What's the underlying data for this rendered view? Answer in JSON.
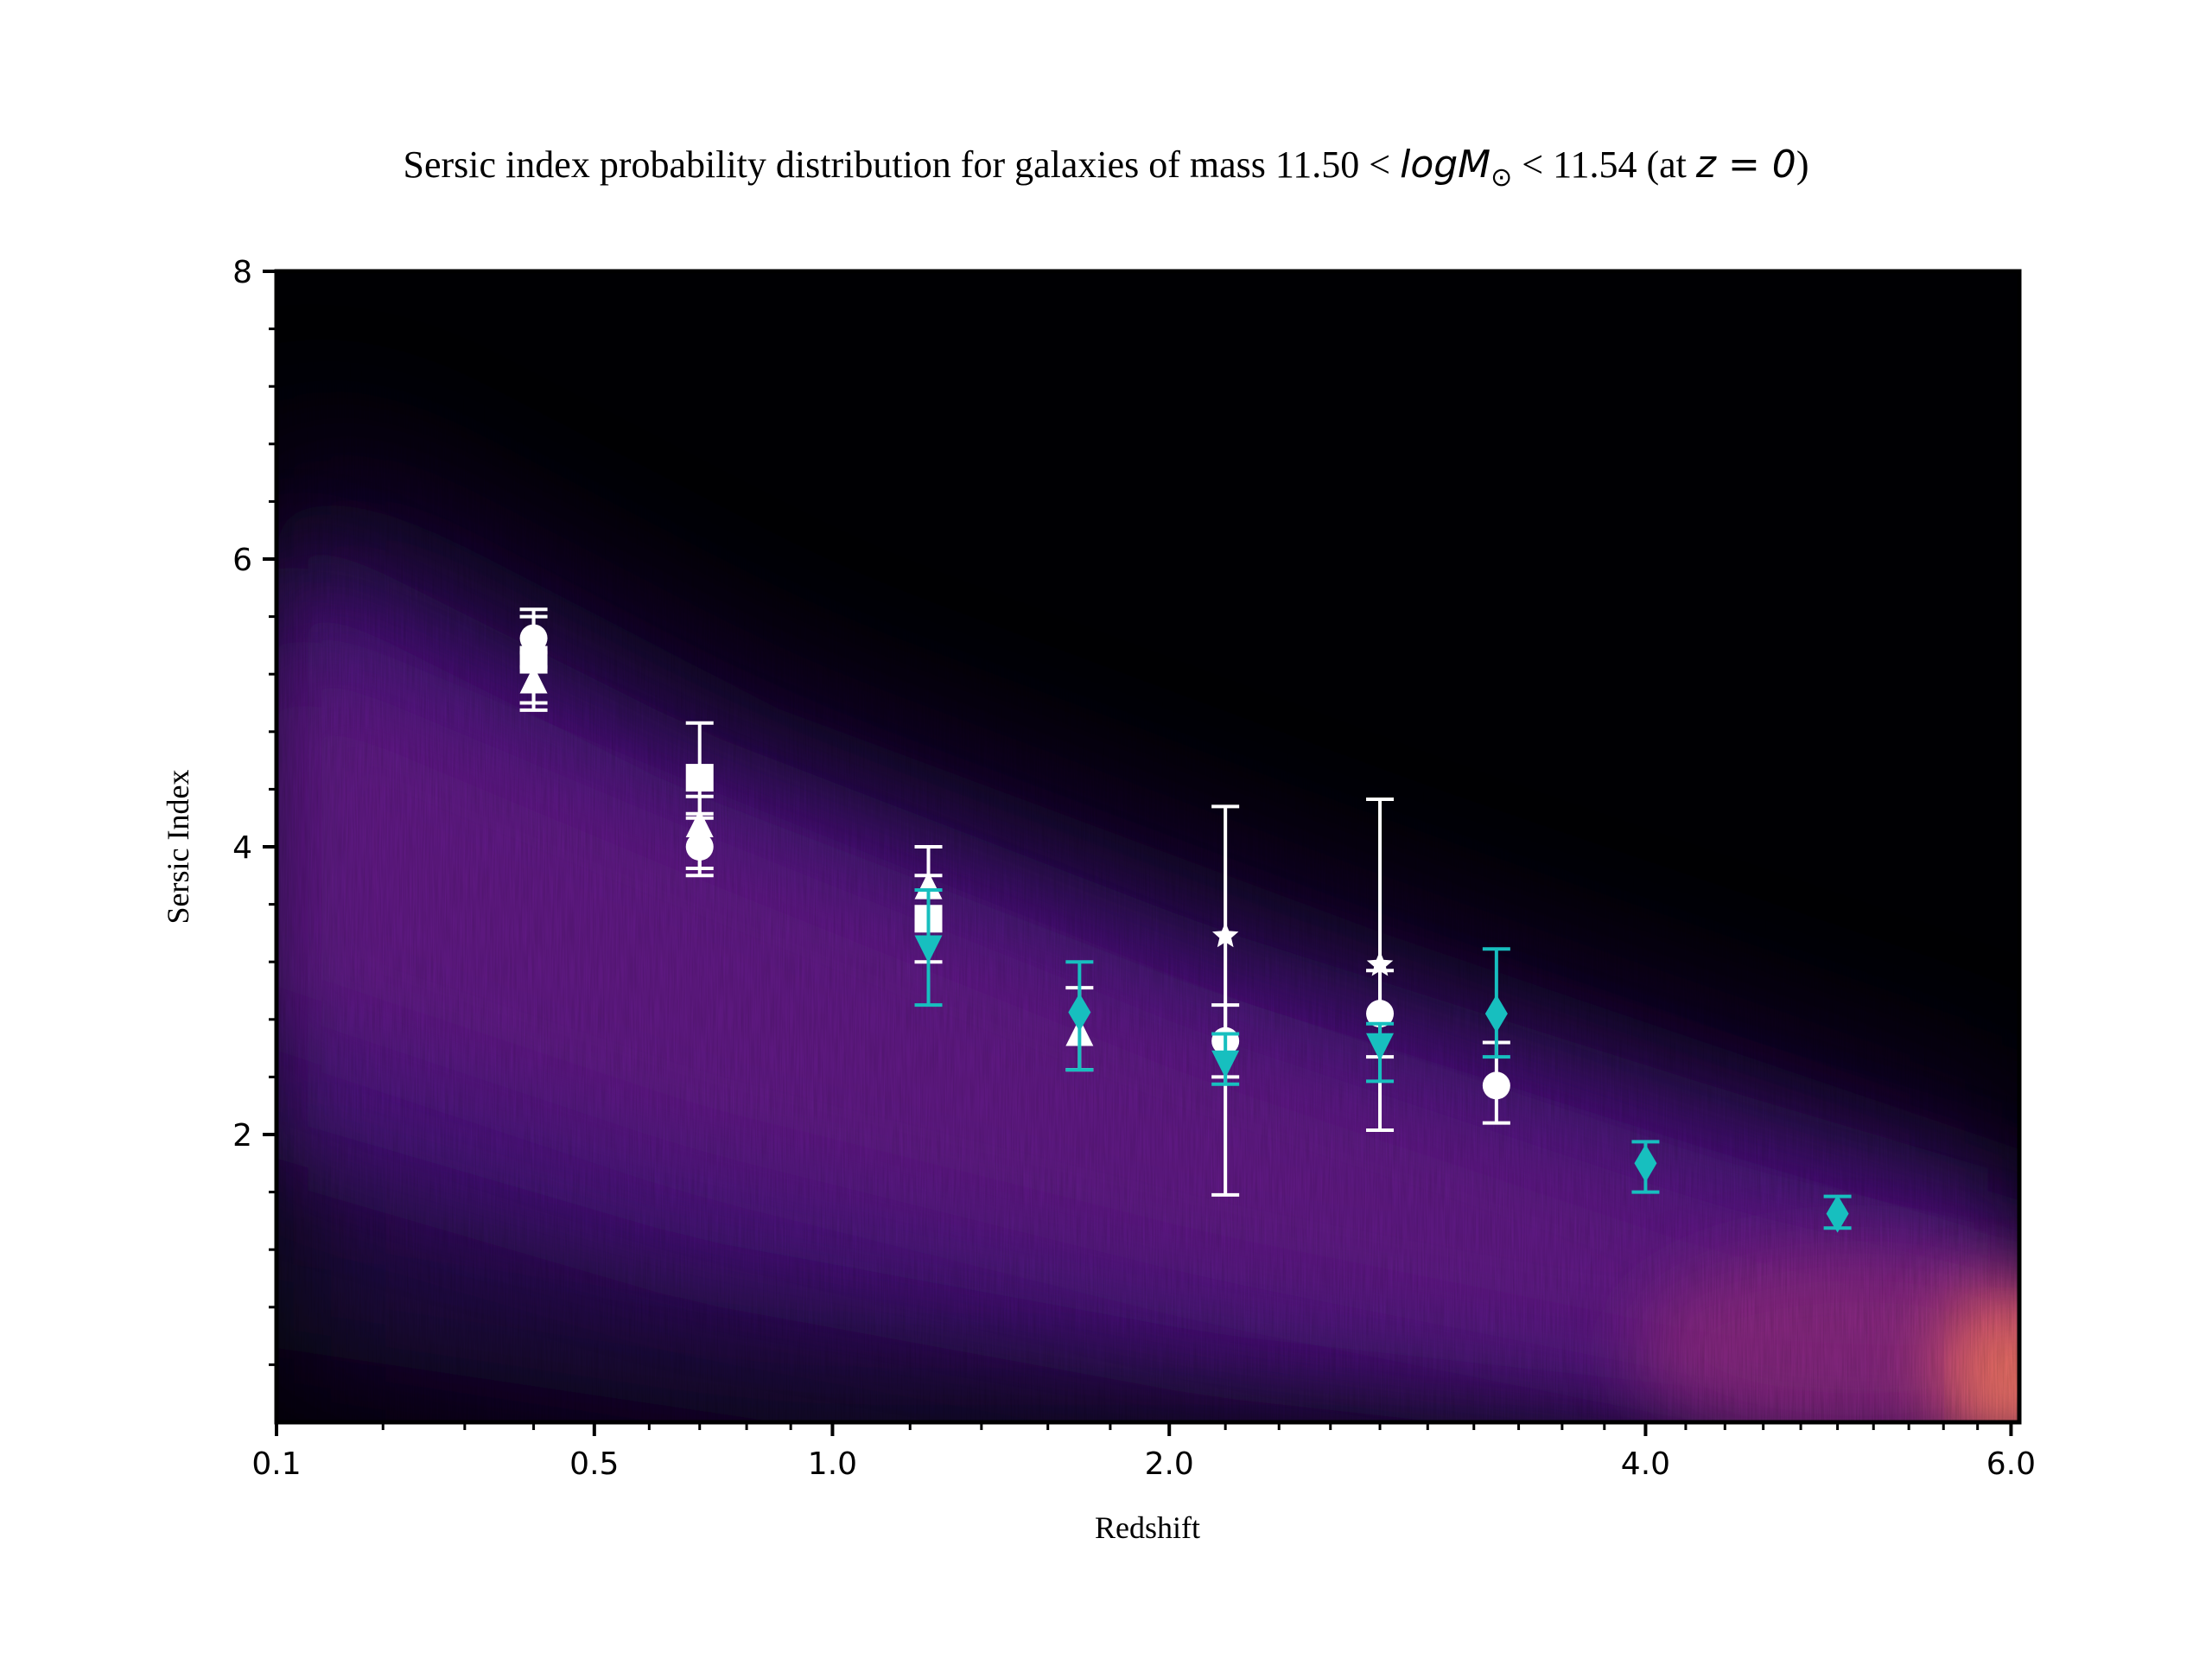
{
  "chart_data": {
    "type": "scatter",
    "title": "Sersic index probability distribution for galaxies of mass 11.50 < logM⊙ < 11.54 (at z = 0)",
    "title_parts": {
      "prefix": "Sersic index probability distribution for galaxies of mass 11.50 < ",
      "math1": "logM",
      "math1_sub": "⊙",
      "middle": " < 11.54 (at ",
      "math2": "z = 0",
      "suffix": ")"
    },
    "xlabel": "Redshift",
    "ylabel": "Sersic Index",
    "x_scale": "sqrt",
    "xlim": [
      0.1,
      6.05
    ],
    "ylim": [
      0,
      8
    ],
    "x_ticks": [
      {
        "value": 0.1,
        "label": "0.1"
      },
      {
        "value": 0.5,
        "label": "0.5"
      },
      {
        "value": 1.0,
        "label": "1.0"
      },
      {
        "value": 2.0,
        "label": "2.0"
      },
      {
        "value": 4.0,
        "label": "4.0"
      },
      {
        "value": 6.0,
        "label": "6.0"
      }
    ],
    "x_minor_ticks": [
      0.2,
      0.3,
      0.4,
      0.6,
      0.7,
      0.8,
      0.9,
      1.2,
      1.4,
      1.6,
      1.8,
      2.2,
      2.4,
      2.6,
      2.8,
      3.0,
      3.2,
      3.4,
      3.6,
      3.8,
      4.2,
      4.4,
      4.6,
      4.8,
      5.0,
      5.2,
      5.4,
      5.6,
      5.8
    ],
    "y_ticks": [
      {
        "value": 2,
        "label": "2"
      },
      {
        "value": 4,
        "label": "4"
      },
      {
        "value": 6,
        "label": "6"
      },
      {
        "value": 8,
        "label": "8"
      }
    ],
    "y_minor_ticks": [
      0.4,
      0.8,
      1.2,
      1.6,
      2.4,
      2.8,
      3.2,
      3.6,
      4.4,
      4.8,
      5.2,
      5.6,
      6.4,
      6.8,
      7.2,
      7.6
    ],
    "grid": false,
    "legend": "none",
    "background": "2D probability density heatmap (magma colormap)",
    "colors": {
      "white_markers": "#ffffff",
      "cyan_markers": "#17bfbf",
      "heat_low": "#000004",
      "heat_mid": "#51127c",
      "heat_high": "#b73779",
      "heat_peak": "#fc8961"
    },
    "series": [
      {
        "marker": "circle",
        "color": "#ffffff",
        "points": [
          {
            "x": 0.4,
            "y": 5.45,
            "err": [
              0.2,
              0.2
            ]
          },
          {
            "x": 0.7,
            "y": 4.0,
            "err": [
              0.2,
              0.2
            ]
          },
          {
            "x": 2.2,
            "y": 2.65,
            "err": [
              0.25,
              0.25
            ]
          },
          {
            "x": 2.8,
            "y": 2.84,
            "err": [
              0.3,
              0.3
            ]
          },
          {
            "x": 3.3,
            "y": 2.34,
            "err": [
              0.26,
              0.3
            ]
          }
        ]
      },
      {
        "marker": "square",
        "color": "#ffffff",
        "points": [
          {
            "x": 0.4,
            "y": 5.3,
            "err": [
              0.3,
              0.3
            ]
          },
          {
            "x": 0.7,
            "y": 4.48,
            "err": [
              0.25,
              0.38
            ]
          },
          {
            "x": 1.25,
            "y": 3.5,
            "err": [
              0.3,
              0.3
            ]
          }
        ]
      },
      {
        "marker": "triangle-up",
        "color": "#ffffff",
        "points": [
          {
            "x": 0.4,
            "y": 5.15,
            "err": [
              0.2,
              0.2
            ]
          },
          {
            "x": 0.7,
            "y": 4.15,
            "err": [
              0.3,
              0.2
            ]
          },
          {
            "x": 1.25,
            "y": 3.72,
            "err": [
              0.3,
              0.28
            ]
          },
          {
            "x": 1.7,
            "y": 2.7,
            "err": [
              0.25,
              0.32
            ]
          }
        ]
      },
      {
        "marker": "star",
        "color": "#ffffff",
        "points": [
          {
            "x": 2.2,
            "y": 3.38,
            "err": [
              1.8,
              0.9
            ]
          },
          {
            "x": 2.8,
            "y": 3.18,
            "err": [
              1.15,
              1.15
            ]
          }
        ]
      },
      {
        "marker": "triangle-down",
        "color": "#17bfbf",
        "points": [
          {
            "x": 1.25,
            "y": 3.3,
            "err": [
              0.4,
              0.4
            ]
          },
          {
            "x": 2.2,
            "y": 2.5,
            "err": [
              0.15,
              0.2
            ]
          },
          {
            "x": 2.8,
            "y": 2.62,
            "err": [
              0.25,
              0.15
            ]
          }
        ]
      },
      {
        "marker": "diamond",
        "color": "#17bfbf",
        "points": [
          {
            "x": 1.7,
            "y": 2.85,
            "err": [
              0.4,
              0.35
            ]
          },
          {
            "x": 3.3,
            "y": 2.84,
            "err": [
              0.3,
              0.45
            ]
          },
          {
            "x": 4.0,
            "y": 1.8,
            "err": [
              0.2,
              0.15
            ]
          },
          {
            "x": 5.0,
            "y": 1.45,
            "err": [
              0.1,
              0.12
            ]
          }
        ]
      }
    ]
  }
}
